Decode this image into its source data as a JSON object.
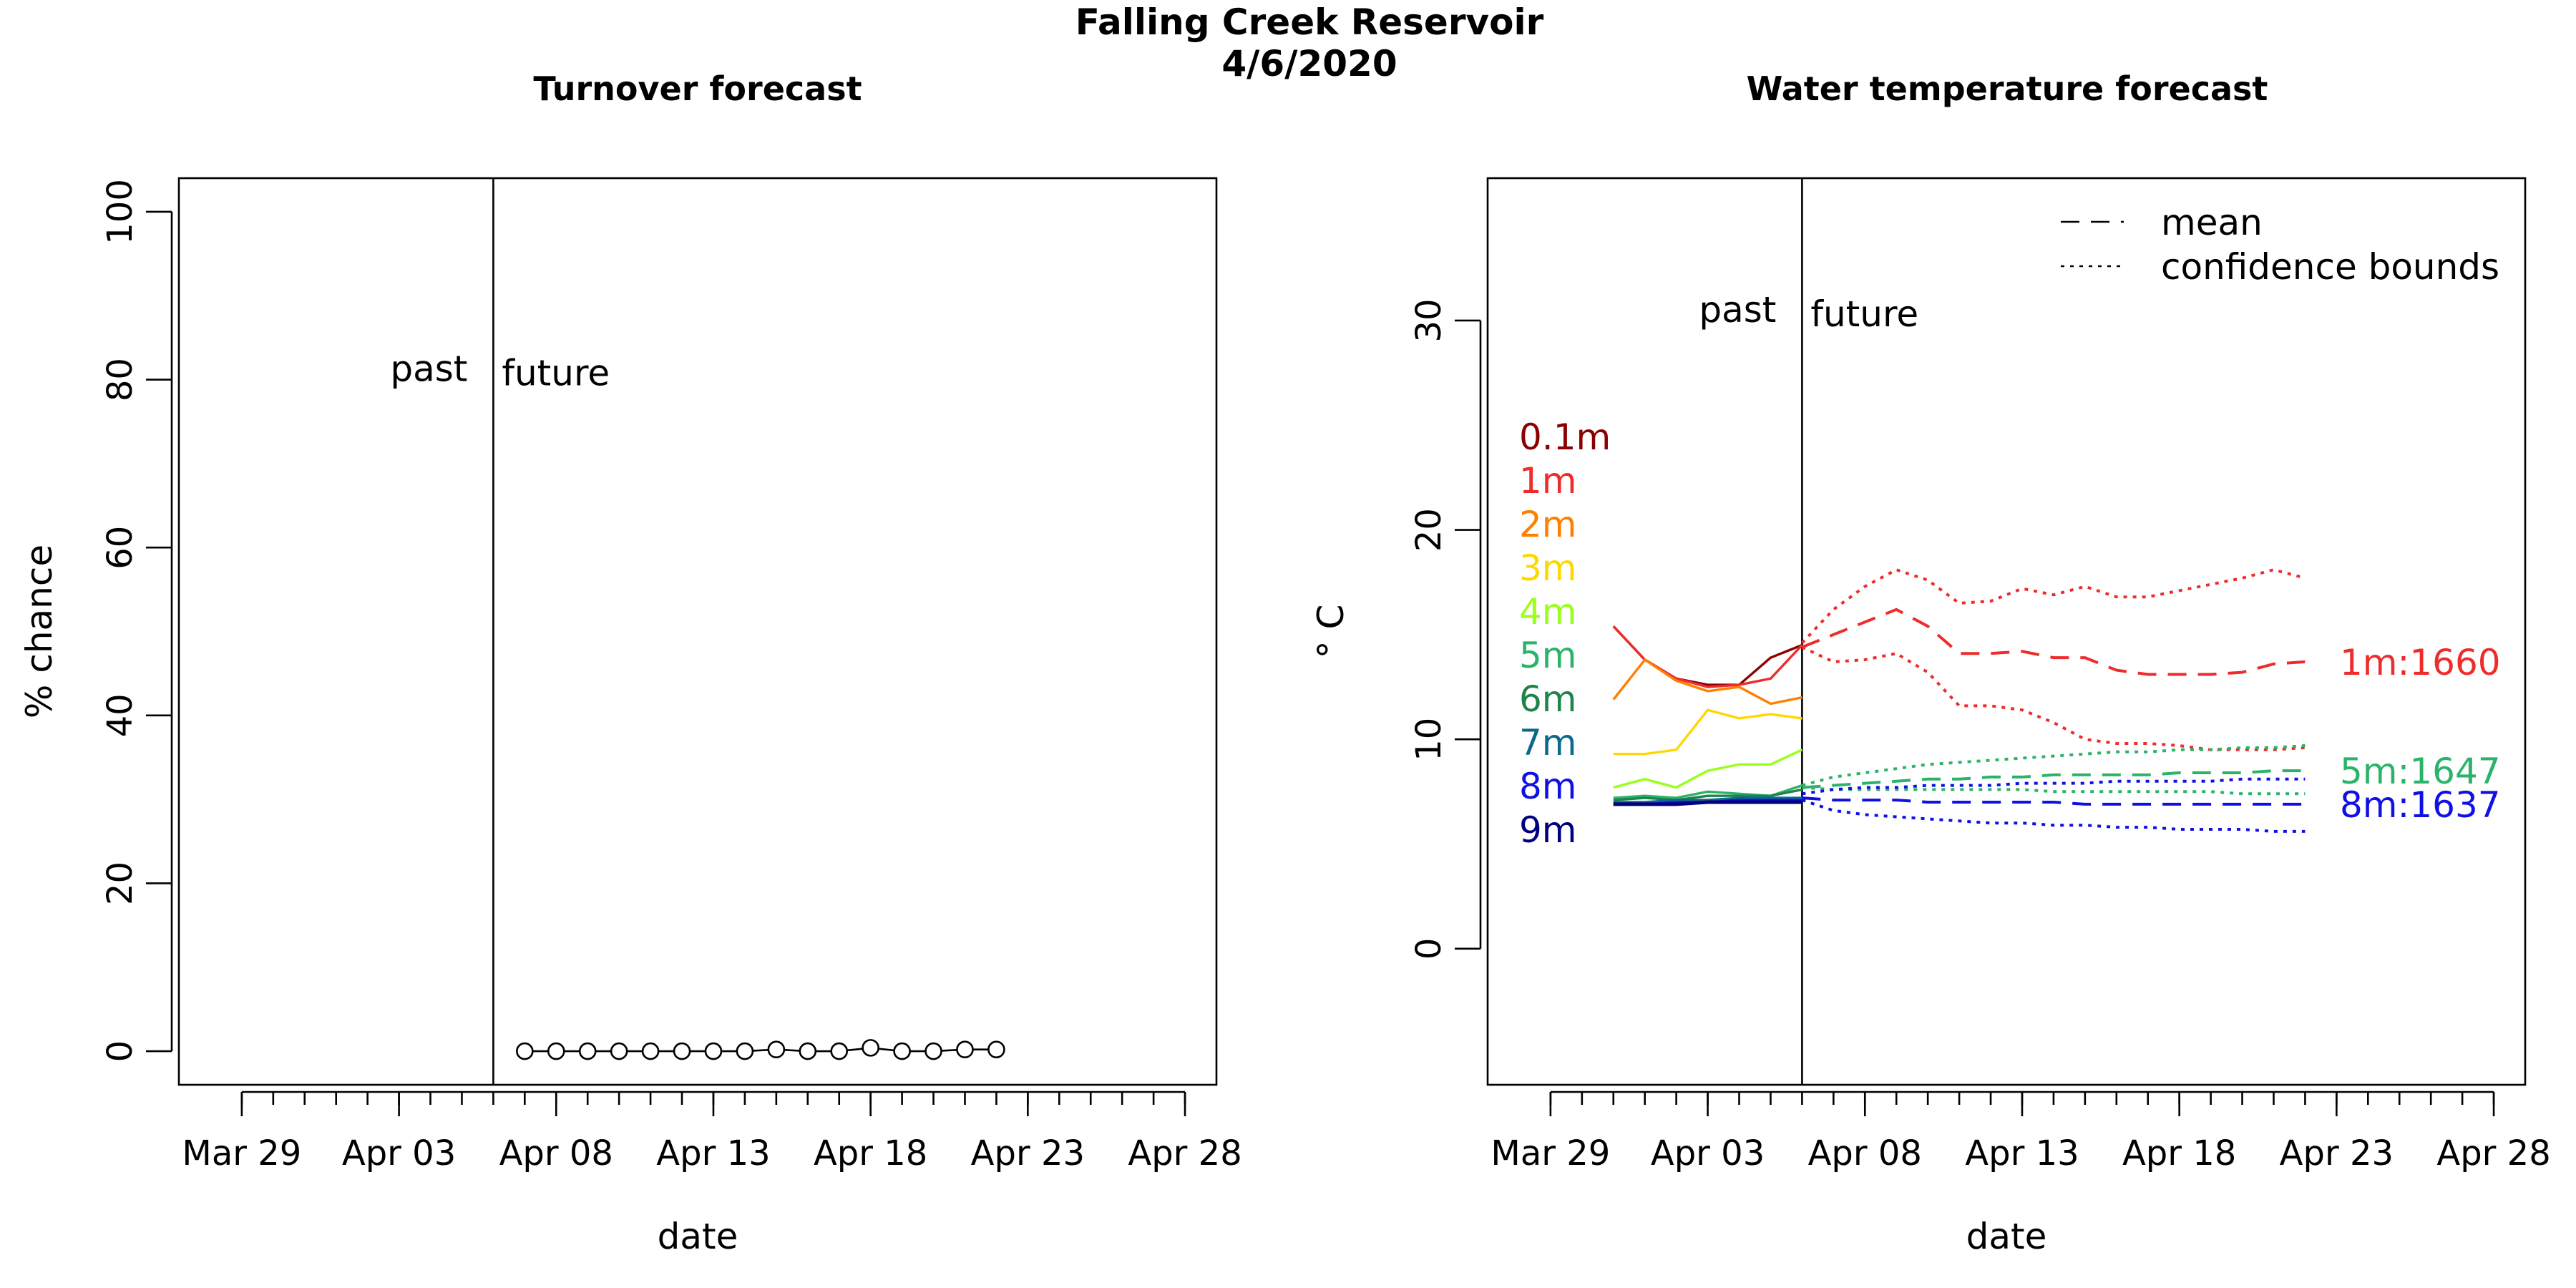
{
  "figure": {
    "title_line1": "Falling Creek Reservoir",
    "title_line2": "4/6/2020"
  },
  "chart_data": [
    {
      "type": "line",
      "title": "Turnover forecast",
      "xlabel": "date",
      "ylabel": "% chance",
      "x_axis_type": "date",
      "xlim": [
        "2020-03-27",
        "2020-04-29"
      ],
      "ylim": [
        -4,
        104
      ],
      "y_ticks": [
        0,
        20,
        40,
        60,
        80,
        100
      ],
      "x_tick_labels": [
        {
          "date": "2020-03-29",
          "label": "Mar 29"
        },
        {
          "date": "2020-04-03",
          "label": "Apr 03"
        },
        {
          "date": "2020-04-08",
          "label": "Apr 08"
        },
        {
          "date": "2020-04-13",
          "label": "Apr 13"
        },
        {
          "date": "2020-04-18",
          "label": "Apr 18"
        },
        {
          "date": "2020-04-23",
          "label": "Apr 23"
        },
        {
          "date": "2020-04-28",
          "label": "Apr 28"
        }
      ],
      "forecast_start": "2020-04-06",
      "past_label": "past",
      "future_label": "future",
      "past_future_label_y": 80,
      "markers": "open-circle",
      "grid": false,
      "series": [
        {
          "x": [
            "2020-04-07",
            "2020-04-08",
            "2020-04-09",
            "2020-04-10",
            "2020-04-11",
            "2020-04-12",
            "2020-04-13",
            "2020-04-14",
            "2020-04-15",
            "2020-04-16",
            "2020-04-17",
            "2020-04-18",
            "2020-04-19",
            "2020-04-20",
            "2020-04-21",
            "2020-04-22"
          ],
          "values": [
            0,
            0,
            0,
            0,
            0,
            0,
            0,
            0,
            0.2,
            0,
            0,
            0.4,
            0,
            0,
            0.2,
            0.2
          ]
        }
      ]
    },
    {
      "type": "line",
      "title": "Water temperature forecast",
      "xlabel": "date",
      "ylabel": "° C",
      "x_axis_type": "date",
      "xlim": [
        "2020-03-27",
        "2020-04-29"
      ],
      "ylim": [
        -6.5,
        36.8
      ],
      "y_ticks": [
        0,
        10,
        20,
        30
      ],
      "x_tick_labels": [
        {
          "date": "2020-03-29",
          "label": "Mar 29"
        },
        {
          "date": "2020-04-03",
          "label": "Apr 03"
        },
        {
          "date": "2020-04-08",
          "label": "Apr 08"
        },
        {
          "date": "2020-04-13",
          "label": "Apr 13"
        },
        {
          "date": "2020-04-18",
          "label": "Apr 18"
        },
        {
          "date": "2020-04-23",
          "label": "Apr 23"
        },
        {
          "date": "2020-04-28",
          "label": "Apr 28"
        }
      ],
      "forecast_start": "2020-04-06",
      "past_label": "past",
      "future_label": "future",
      "past_future_label_y": 30,
      "legend_position": "top-right",
      "legend": [
        {
          "label": "mean",
          "style": "dashed"
        },
        {
          "label": "confidence bounds",
          "style": "dotted"
        }
      ],
      "depth_labels": [
        {
          "label": "0.1m",
          "color": "#8B0000"
        },
        {
          "label": "1m",
          "color": "#EE2C2C"
        },
        {
          "label": "2m",
          "color": "#FF7F00"
        },
        {
          "label": "3m",
          "color": "#FFD700"
        },
        {
          "label": "4m",
          "color": "#9AFF1A"
        },
        {
          "label": "5m",
          "color": "#2CB36A"
        },
        {
          "label": "6m",
          "color": "#1E8449"
        },
        {
          "label": "7m",
          "color": "#0B6A8B"
        },
        {
          "label": "8m",
          "color": "#1010E6"
        },
        {
          "label": "9m",
          "color": "#00007F"
        }
      ],
      "past_x": [
        "2020-03-31",
        "2020-04-01",
        "2020-04-02",
        "2020-04-03",
        "2020-04-04",
        "2020-04-05",
        "2020-04-06"
      ],
      "past_series": [
        {
          "depth": "0.1m",
          "color": "#8B0000",
          "values": [
            15.4,
            13.8,
            12.9,
            12.6,
            12.6,
            13.9,
            14.5
          ]
        },
        {
          "depth": "1m",
          "color": "#EE2C2C",
          "values": [
            15.4,
            13.8,
            12.9,
            12.5,
            12.6,
            12.9,
            14.5
          ]
        },
        {
          "depth": "2m",
          "color": "#FF7F00",
          "values": [
            11.9,
            13.8,
            12.8,
            12.3,
            12.5,
            11.7,
            12.0
          ]
        },
        {
          "depth": "3m",
          "color": "#FFD700",
          "values": [
            9.3,
            9.3,
            9.5,
            11.4,
            11.0,
            11.2,
            11.0
          ]
        },
        {
          "depth": "4m",
          "color": "#9AFF1A",
          "values": [
            7.7,
            8.1,
            7.7,
            8.5,
            8.8,
            8.8,
            9.5
          ]
        },
        {
          "depth": "5m",
          "color": "#2CB36A",
          "values": [
            7.2,
            7.3,
            7.2,
            7.5,
            7.4,
            7.3,
            7.8
          ]
        },
        {
          "depth": "6m",
          "color": "#1E8449",
          "values": [
            7.1,
            7.2,
            7.1,
            7.3,
            7.3,
            7.3,
            7.6
          ]
        },
        {
          "depth": "7m",
          "color": "#0B6A8B",
          "values": [
            7.0,
            7.0,
            7.1,
            7.1,
            7.2,
            7.2,
            7.2
          ]
        },
        {
          "depth": "8m",
          "color": "#1010E6",
          "values": [
            6.9,
            6.9,
            7.0,
            7.0,
            7.1,
            7.1,
            7.1
          ]
        },
        {
          "depth": "9m",
          "color": "#00007F",
          "values": [
            6.9,
            6.9,
            6.9,
            7.0,
            7.0,
            7.0,
            7.0
          ]
        }
      ],
      "forecast_x": [
        "2020-04-06",
        "2020-04-07",
        "2020-04-08",
        "2020-04-09",
        "2020-04-10",
        "2020-04-11",
        "2020-04-12",
        "2020-04-13",
        "2020-04-14",
        "2020-04-15",
        "2020-04-16",
        "2020-04-17",
        "2020-04-18",
        "2020-04-19",
        "2020-04-20",
        "2020-04-21",
        "2020-04-22"
      ],
      "forecast_series": [
        {
          "name": "1m:1660",
          "color": "#EE2C2C",
          "mean": [
            14.4,
            15.0,
            15.6,
            16.2,
            15.4,
            14.1,
            14.1,
            14.2,
            13.9,
            13.9,
            13.3,
            13.1,
            13.1,
            13.1,
            13.2,
            13.6,
            13.7
          ],
          "upper": [
            14.6,
            16.2,
            17.3,
            18.1,
            17.6,
            16.5,
            16.6,
            17.2,
            16.9,
            17.3,
            16.8,
            16.8,
            17.1,
            17.4,
            17.7,
            18.1,
            17.7
          ],
          "lower": [
            14.4,
            13.7,
            13.8,
            14.1,
            13.2,
            11.6,
            11.6,
            11.4,
            10.8,
            10.0,
            9.8,
            9.8,
            9.7,
            9.5,
            9.5,
            9.5,
            9.6
          ]
        },
        {
          "name": "5m:1647",
          "color": "#2CB36A",
          "mean": [
            7.7,
            7.8,
            7.9,
            8.0,
            8.1,
            8.1,
            8.2,
            8.2,
            8.3,
            8.3,
            8.3,
            8.3,
            8.4,
            8.4,
            8.4,
            8.5,
            8.5
          ],
          "upper": [
            7.8,
            8.2,
            8.4,
            8.6,
            8.8,
            8.9,
            9.0,
            9.1,
            9.2,
            9.3,
            9.4,
            9.4,
            9.5,
            9.5,
            9.6,
            9.6,
            9.7
          ],
          "lower": [
            7.7,
            7.6,
            7.6,
            7.6,
            7.6,
            7.6,
            7.6,
            7.6,
            7.5,
            7.5,
            7.5,
            7.5,
            7.5,
            7.5,
            7.4,
            7.4,
            7.4
          ]
        },
        {
          "name": "8m:1637",
          "color": "#1010E6",
          "mean": [
            7.2,
            7.1,
            7.1,
            7.1,
            7.0,
            7.0,
            7.0,
            7.0,
            7.0,
            6.9,
            6.9,
            6.9,
            6.9,
            6.9,
            6.9,
            6.9,
            6.9
          ],
          "upper": [
            7.4,
            7.6,
            7.7,
            7.7,
            7.8,
            7.8,
            7.8,
            7.9,
            7.9,
            7.9,
            8.0,
            8.0,
            8.0,
            8.0,
            8.1,
            8.1,
            8.1
          ],
          "lower": [
            7.1,
            6.6,
            6.4,
            6.3,
            6.2,
            6.1,
            6.0,
            6.0,
            5.9,
            5.9,
            5.8,
            5.8,
            5.7,
            5.7,
            5.7,
            5.6,
            5.6
          ]
        }
      ]
    }
  ]
}
